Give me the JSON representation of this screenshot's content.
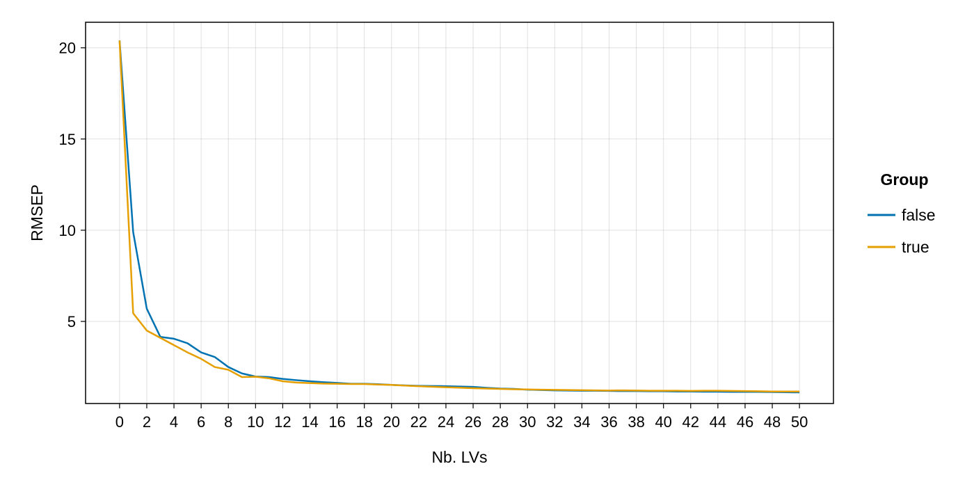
{
  "chart_data": {
    "type": "line",
    "xlabel": "Nb. LVs",
    "ylabel": "RMSEP",
    "xlim": [
      -2.5,
      52.5
    ],
    "ylim": [
      0.5,
      21.4
    ],
    "xticks": [
      0,
      2,
      4,
      6,
      8,
      10,
      12,
      14,
      16,
      18,
      20,
      22,
      24,
      26,
      28,
      30,
      32,
      34,
      36,
      38,
      40,
      42,
      44,
      46,
      48,
      50
    ],
    "yticks": [
      5,
      10,
      15,
      20
    ],
    "grid": true,
    "legend": {
      "title": "Group",
      "placement": "right"
    },
    "x": [
      0,
      1,
      2,
      3,
      4,
      5,
      6,
      7,
      8,
      9,
      10,
      11,
      12,
      13,
      14,
      15,
      16,
      17,
      18,
      19,
      20,
      21,
      22,
      23,
      24,
      25,
      26,
      27,
      28,
      29,
      30,
      31,
      32,
      33,
      34,
      35,
      36,
      37,
      38,
      39,
      40,
      41,
      42,
      43,
      44,
      45,
      46,
      47,
      48,
      49,
      50
    ],
    "series": [
      {
        "name": "false",
        "color": "#0072B2",
        "values": [
          20.4,
          9.9,
          5.7,
          4.15,
          4.05,
          3.8,
          3.3,
          3.05,
          2.5,
          2.15,
          1.98,
          1.95,
          1.85,
          1.78,
          1.72,
          1.67,
          1.63,
          1.58,
          1.58,
          1.56,
          1.52,
          1.49,
          1.47,
          1.46,
          1.45,
          1.43,
          1.41,
          1.36,
          1.32,
          1.3,
          1.26,
          1.24,
          1.22,
          1.21,
          1.2,
          1.2,
          1.19,
          1.18,
          1.18,
          1.17,
          1.17,
          1.16,
          1.16,
          1.15,
          1.15,
          1.14,
          1.14,
          1.14,
          1.13,
          1.12,
          1.11
        ]
      },
      {
        "name": "true",
        "color": "#E69F00",
        "values": [
          20.4,
          5.45,
          4.5,
          4.1,
          3.7,
          3.3,
          2.95,
          2.5,
          2.35,
          1.95,
          1.97,
          1.88,
          1.72,
          1.65,
          1.62,
          1.59,
          1.58,
          1.57,
          1.57,
          1.54,
          1.52,
          1.48,
          1.45,
          1.42,
          1.39,
          1.37,
          1.34,
          1.32,
          1.3,
          1.28,
          1.27,
          1.26,
          1.25,
          1.24,
          1.23,
          1.22,
          1.21,
          1.22,
          1.21,
          1.2,
          1.2,
          1.2,
          1.19,
          1.2,
          1.2,
          1.19,
          1.18,
          1.17,
          1.16,
          1.16,
          1.16
        ]
      }
    ]
  }
}
